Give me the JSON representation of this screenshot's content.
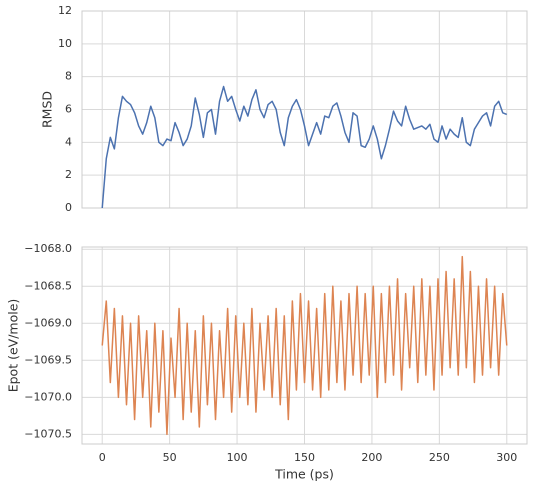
{
  "chart_data": [
    {
      "type": "line",
      "ylabel": "RMSD",
      "color": "#4c72b0",
      "x": [
        0,
        3,
        6,
        9,
        12,
        15,
        18,
        21,
        24,
        27,
        30,
        33,
        36,
        39,
        42,
        45,
        48,
        51,
        54,
        57,
        60,
        63,
        66,
        69,
        72,
        75,
        78,
        81,
        84,
        87,
        90,
        93,
        96,
        99,
        102,
        105,
        108,
        111,
        114,
        117,
        120,
        123,
        126,
        129,
        132,
        135,
        138,
        141,
        144,
        147,
        150,
        153,
        156,
        159,
        162,
        165,
        168,
        171,
        174,
        177,
        180,
        183,
        186,
        189,
        192,
        195,
        198,
        201,
        204,
        207,
        210,
        213,
        216,
        219,
        222,
        225,
        228,
        231,
        234,
        237,
        240,
        243,
        246,
        249,
        252,
        255,
        258,
        261,
        264,
        267,
        270,
        273,
        276,
        279,
        282,
        285,
        288,
        291,
        294,
        297,
        300
      ],
      "values": [
        0,
        3.0,
        4.3,
        3.6,
        5.5,
        6.8,
        6.5,
        6.3,
        5.8,
        5.0,
        4.5,
        5.2,
        6.2,
        5.5,
        4.0,
        3.8,
        4.2,
        4.1,
        5.2,
        4.6,
        3.8,
        4.2,
        5.0,
        6.7,
        5.7,
        4.3,
        5.8,
        6.0,
        4.5,
        6.5,
        7.4,
        6.5,
        6.8,
        6.0,
        5.3,
        6.2,
        5.6,
        6.6,
        7.2,
        6.0,
        5.5,
        6.3,
        6.5,
        6.0,
        4.6,
        3.8,
        5.5,
        6.2,
        6.6,
        6.0,
        5.0,
        3.8,
        4.5,
        5.2,
        4.5,
        5.6,
        5.5,
        6.2,
        6.4,
        5.6,
        4.6,
        4.0,
        5.8,
        5.6,
        3.8,
        3.7,
        4.2,
        5.0,
        4.2,
        3.0,
        3.8,
        4.8,
        5.9,
        5.3,
        5.0,
        6.2,
        5.4,
        4.8,
        4.9,
        5.0,
        4.8,
        5.1,
        4.2,
        4.0,
        5.0,
        4.2,
        4.8,
        4.5,
        4.3,
        5.5,
        4.0,
        3.8,
        4.8,
        5.2,
        5.6,
        5.8,
        5.0,
        6.2,
        6.5,
        5.8,
        5.7
      ],
      "xlim": [
        -15,
        315
      ],
      "xticks": [
        0,
        50,
        100,
        150,
        200,
        250,
        300
      ],
      "ylim": [
        0,
        12
      ],
      "yticks": [
        0,
        2,
        4,
        6,
        8,
        10,
        12
      ],
      "grid": true
    },
    {
      "type": "line",
      "xlabel": "Time (ps)",
      "ylabel": "Epot (eV/mole)",
      "color": "#dd8452",
      "x": [
        0,
        3,
        6,
        9,
        12,
        15,
        18,
        21,
        24,
        27,
        30,
        33,
        36,
        39,
        42,
        45,
        48,
        51,
        54,
        57,
        60,
        63,
        66,
        69,
        72,
        75,
        78,
        81,
        84,
        87,
        90,
        93,
        96,
        99,
        102,
        105,
        108,
        111,
        114,
        117,
        120,
        123,
        126,
        129,
        132,
        135,
        138,
        141,
        144,
        147,
        150,
        153,
        156,
        159,
        162,
        165,
        168,
        171,
        174,
        177,
        180,
        183,
        186,
        189,
        192,
        195,
        198,
        201,
        204,
        207,
        210,
        213,
        216,
        219,
        222,
        225,
        228,
        231,
        234,
        237,
        240,
        243,
        246,
        249,
        252,
        255,
        258,
        261,
        264,
        267,
        270,
        273,
        276,
        279,
        282,
        285,
        288,
        291,
        294,
        297,
        300
      ],
      "values": [
        -1069.3,
        -1068.7,
        -1069.8,
        -1068.8,
        -1070.0,
        -1068.9,
        -1070.1,
        -1069.0,
        -1070.3,
        -1068.9,
        -1070.0,
        -1069.1,
        -1070.4,
        -1069.0,
        -1070.2,
        -1069.1,
        -1070.5,
        -1069.2,
        -1070.0,
        -1068.8,
        -1070.3,
        -1069.0,
        -1070.2,
        -1069.1,
        -1070.4,
        -1068.9,
        -1070.1,
        -1069.0,
        -1070.3,
        -1069.1,
        -1070.0,
        -1068.8,
        -1070.2,
        -1068.9,
        -1070.0,
        -1069.0,
        -1070.1,
        -1068.8,
        -1070.2,
        -1069.0,
        -1069.9,
        -1068.9,
        -1070.0,
        -1068.8,
        -1070.1,
        -1068.9,
        -1070.3,
        -1068.7,
        -1069.9,
        -1068.6,
        -1069.8,
        -1068.7,
        -1069.9,
        -1068.8,
        -1070.0,
        -1068.6,
        -1069.9,
        -1068.5,
        -1069.8,
        -1068.7,
        -1069.9,
        -1068.6,
        -1069.7,
        -1068.5,
        -1069.8,
        -1068.6,
        -1069.7,
        -1068.5,
        -1070.0,
        -1068.6,
        -1069.8,
        -1068.5,
        -1069.7,
        -1068.4,
        -1069.9,
        -1068.6,
        -1069.6,
        -1068.5,
        -1069.8,
        -1068.4,
        -1069.7,
        -1068.5,
        -1069.9,
        -1068.4,
        -1069.7,
        -1068.3,
        -1069.6,
        -1068.4,
        -1069.7,
        -1068.1,
        -1069.6,
        -1068.3,
        -1069.8,
        -1068.5,
        -1069.7,
        -1068.4,
        -1069.6,
        -1068.5,
        -1069.7,
        -1068.6,
        -1069.3
      ],
      "xlim": [
        -15,
        315
      ],
      "xticks": [
        0,
        50,
        100,
        150,
        200,
        250,
        300
      ],
      "ylim": [
        -1070.63,
        -1067.97
      ],
      "yticks": [
        {
          "value": -1070.5,
          "label": "−1070.5"
        },
        {
          "value": -1070.0,
          "label": "−1070.0"
        },
        {
          "value": -1069.5,
          "label": "−1069.5"
        },
        {
          "value": -1069.0,
          "label": "−1069.0"
        },
        {
          "value": -1068.5,
          "label": "−1068.5"
        },
        {
          "value": -1068.0,
          "label": "−1068.0"
        }
      ],
      "grid": true
    }
  ]
}
